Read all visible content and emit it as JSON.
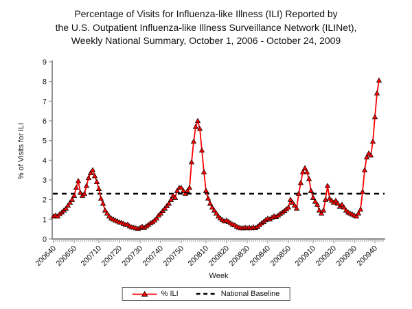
{
  "title": {
    "line1": "Percentage of Visits for Influenza-like Illness (ILI) Reported by",
    "line2": "the U.S. Outpatient Influenza-like Illness Surveillance Network (ILINet),",
    "line3": "Weekly National Summary, October 1, 2006 - October 24, 2009"
  },
  "chart_data": {
    "type": "line",
    "title": "Percentage of Visits for Influenza-like Illness (ILI) Reported by the U.S. Outpatient Influenza-like Illness Surveillance Network (ILINet), Weekly National Summary, October 1, 2006 - October 24, 2009",
    "xlabel": "Week",
    "ylabel": "% of Visits for ILI",
    "ylim": [
      0,
      9
    ],
    "yticks": [
      0,
      1,
      2,
      3,
      4,
      5,
      6,
      7,
      8,
      9
    ],
    "grid": false,
    "axis_color": "#808080",
    "x_start_week": "200640",
    "x_end_week": "200942",
    "x_weekly_point_count": 159,
    "x_major_ticks": [
      {
        "label": "200640",
        "week_index": 0
      },
      {
        "label": "200650",
        "week_index": 10
      },
      {
        "label": "200710",
        "week_index": 22
      },
      {
        "label": "200720",
        "week_index": 32
      },
      {
        "label": "200730",
        "week_index": 42
      },
      {
        "label": "200740",
        "week_index": 52
      },
      {
        "label": "200750",
        "week_index": 62
      },
      {
        "label": "200810",
        "week_index": 74
      },
      {
        "label": "200820",
        "week_index": 84
      },
      {
        "label": "200830",
        "week_index": 94
      },
      {
        "label": "200840",
        "week_index": 104
      },
      {
        "label": "200850",
        "week_index": 114
      },
      {
        "label": "200910",
        "week_index": 126
      },
      {
        "label": "200920",
        "week_index": 136
      },
      {
        "label": "200930",
        "week_index": 146
      },
      {
        "label": "200940",
        "week_index": 156
      }
    ],
    "series": [
      {
        "name": "% ILI",
        "color": "#ff0000",
        "marker": "triangle",
        "marker_edge_color": "#000000",
        "values": [
          1.15,
          1.2,
          1.15,
          1.27,
          1.35,
          1.45,
          1.55,
          1.7,
          1.85,
          2.0,
          2.2,
          2.6,
          2.95,
          2.35,
          2.2,
          2.3,
          2.7,
          3.1,
          3.35,
          3.5,
          3.2,
          2.9,
          2.55,
          2.05,
          1.8,
          1.45,
          1.3,
          1.15,
          1.05,
          1.0,
          0.95,
          0.9,
          0.85,
          0.83,
          0.78,
          0.72,
          0.74,
          0.65,
          0.6,
          0.58,
          0.55,
          0.52,
          0.57,
          0.63,
          0.57,
          0.65,
          0.72,
          0.8,
          0.86,
          0.95,
          1.05,
          1.2,
          1.3,
          1.43,
          1.55,
          1.68,
          1.8,
          2.0,
          2.2,
          2.1,
          2.45,
          2.6,
          2.6,
          2.45,
          2.3,
          2.45,
          2.6,
          3.9,
          4.95,
          5.7,
          6.0,
          5.6,
          4.5,
          3.4,
          2.45,
          2.06,
          1.8,
          1.6,
          1.45,
          1.3,
          1.15,
          1.05,
          0.97,
          0.9,
          0.95,
          0.88,
          0.8,
          0.74,
          0.7,
          0.63,
          0.58,
          0.55,
          0.55,
          0.58,
          0.55,
          0.58,
          0.55,
          0.6,
          0.56,
          0.63,
          0.72,
          0.8,
          0.88,
          0.97,
          1.04,
          1.0,
          1.09,
          1.16,
          1.12,
          1.2,
          1.28,
          1.35,
          1.43,
          1.52,
          1.6,
          2.0,
          1.85,
          1.7,
          1.55,
          2.3,
          2.85,
          3.4,
          3.6,
          3.4,
          3.05,
          2.45,
          2.1,
          1.9,
          1.75,
          1.45,
          1.3,
          1.45,
          2.0,
          2.7,
          2.05,
          1.95,
          1.85,
          1.95,
          1.8,
          1.65,
          1.75,
          1.6,
          1.45,
          1.35,
          1.3,
          1.25,
          1.2,
          1.15,
          1.3,
          1.5,
          2.4,
          3.5,
          4.15,
          4.35,
          4.25,
          4.95,
          6.2,
          7.4,
          8.05
        ]
      }
    ],
    "baseline": {
      "name": "National Baseline",
      "value": 2.3,
      "style": "dashed",
      "color": "#000000"
    },
    "legend_position": "bottom-center"
  },
  "legend": {
    "items": [
      {
        "label": "% ILI",
        "swatch": "red-line-triangle-marker"
      },
      {
        "label": "National Baseline",
        "swatch": "black-dashed-line"
      }
    ]
  }
}
